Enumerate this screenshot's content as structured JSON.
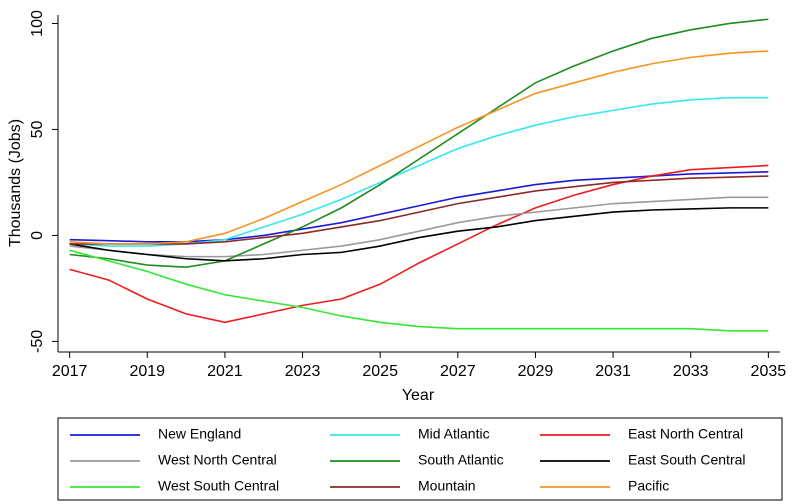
{
  "chart_data": {
    "type": "line",
    "x_label": "Year",
    "y_label": "Thousands (Jobs)",
    "x": [
      2017,
      2018,
      2019,
      2020,
      2021,
      2022,
      2023,
      2024,
      2025,
      2026,
      2027,
      2028,
      2029,
      2030,
      2031,
      2032,
      2033,
      2034,
      2035
    ],
    "xlim": [
      2016.7,
      2035.3
    ],
    "xticks": [
      2017,
      2019,
      2021,
      2023,
      2025,
      2027,
      2029,
      2031,
      2033,
      2035
    ],
    "ylim": [
      -55,
      104
    ],
    "yticks": [
      -50,
      0,
      50,
      100
    ],
    "grid": false,
    "legend": "bottom",
    "series": [
      {
        "name": "New England",
        "color": "#1a1adc",
        "values": [
          -2,
          -2.5,
          -3,
          -3,
          -2,
          0,
          3,
          6,
          10,
          14,
          18,
          21,
          24,
          26,
          27,
          28,
          29,
          29.5,
          30
        ]
      },
      {
        "name": "Mid Atlantic",
        "color": "#33e8f0",
        "values": [
          -4,
          -5,
          -5,
          -4,
          -2,
          4,
          10,
          17,
          25,
          33,
          41,
          47,
          52,
          56,
          59,
          62,
          64,
          65,
          65
        ]
      },
      {
        "name": "East North Central",
        "color": "#f01c1c",
        "values": [
          -16,
          -21,
          -30,
          -37,
          -41,
          -37,
          -33,
          -30,
          -23,
          -13,
          -4,
          5,
          13,
          19,
          24,
          28,
          31,
          32,
          33
        ]
      },
      {
        "name": "West North Central",
        "color": "#9a9a9a",
        "values": [
          -5,
          -7,
          -9,
          -10,
          -10,
          -9,
          -7,
          -5,
          -2,
          2,
          6,
          9,
          11,
          13,
          15,
          16,
          17,
          18,
          18
        ]
      },
      {
        "name": "South Atlantic",
        "color": "#1e8c1e",
        "values": [
          -9,
          -11,
          -14,
          -15,
          -12,
          -4,
          4,
          13,
          24,
          36,
          48,
          60,
          72,
          80,
          87,
          93,
          97,
          100,
          102
        ]
      },
      {
        "name": "East South Central",
        "color": "#000000",
        "values": [
          -4,
          -7,
          -9,
          -11,
          -12,
          -11,
          -9,
          -8,
          -5,
          -1,
          2,
          4,
          7,
          9,
          11,
          12,
          12.5,
          13,
          13
        ]
      },
      {
        "name": "West South Central",
        "color": "#33e833",
        "values": [
          -7,
          -12,
          -17,
          -23,
          -28,
          -31,
          -34,
          -38,
          -41,
          -43,
          -44,
          -44,
          -44,
          -44,
          -44,
          -44,
          -44,
          -45,
          -45
        ]
      },
      {
        "name": "Mountain",
        "color": "#8c2a2a",
        "values": [
          -4,
          -4,
          -4,
          -4,
          -3,
          -1,
          1,
          4,
          7,
          11,
          15,
          18,
          21,
          23,
          25,
          26,
          27,
          27.5,
          28
        ]
      },
      {
        "name": "Pacific",
        "color": "#f59422",
        "values": [
          -3,
          -4,
          -4,
          -3,
          1,
          8,
          16,
          24,
          33,
          42,
          51,
          59,
          67,
          72,
          77,
          81,
          84,
          86,
          87
        ]
      }
    ]
  }
}
